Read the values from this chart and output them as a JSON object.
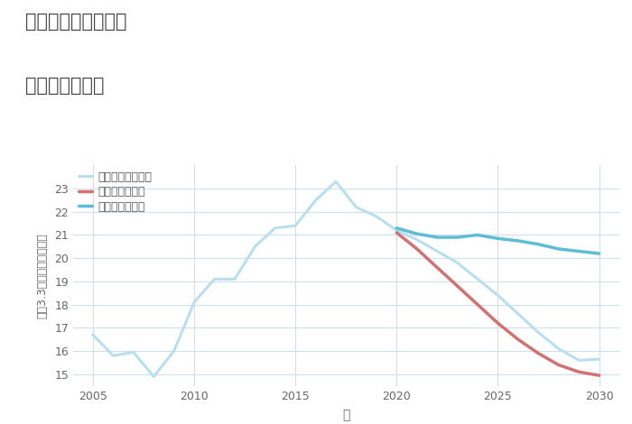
{
  "title_line1": "福岡県古賀市美明の",
  "title_line2": "土地の価格推移",
  "xlabel": "年",
  "ylabel": "坪（3.3㎡）単価（万円）",
  "ylim": [
    14.5,
    24.0
  ],
  "xlim": [
    2004,
    2031
  ],
  "yticks": [
    15,
    16,
    17,
    18,
    19,
    20,
    21,
    22,
    23
  ],
  "xticks": [
    2005,
    2010,
    2015,
    2020,
    2025,
    2030
  ],
  "good_scenario": {
    "label": "グッドシナリオ",
    "color": "#5bbdd6",
    "linewidth": 2.5,
    "x": [
      2020,
      2021,
      2022,
      2023,
      2024,
      2025,
      2026,
      2027,
      2028,
      2029,
      2030
    ],
    "y": [
      21.3,
      21.05,
      20.9,
      20.9,
      21.0,
      20.85,
      20.75,
      20.6,
      20.4,
      20.3,
      20.2
    ]
  },
  "bad_scenario": {
    "label": "バッドシナリオ",
    "color": "#d47070",
    "linewidth": 2.5,
    "x": [
      2020,
      2021,
      2022,
      2023,
      2024,
      2025,
      2026,
      2027,
      2028,
      2029,
      2030
    ],
    "y": [
      21.1,
      20.4,
      19.6,
      18.8,
      18.0,
      17.2,
      16.5,
      15.9,
      15.4,
      15.1,
      14.95
    ]
  },
  "normal_scenario": {
    "label": "ノーマルシナリオ",
    "color": "#b8dff0",
    "linewidth": 2.2,
    "x": [
      2005,
      2006,
      2007,
      2008,
      2009,
      2010,
      2011,
      2012,
      2013,
      2014,
      2015,
      2016,
      2017,
      2018,
      2019,
      2020,
      2021,
      2022,
      2023,
      2024,
      2025,
      2026,
      2027,
      2028,
      2029,
      2030
    ],
    "y": [
      16.7,
      15.8,
      15.95,
      14.9,
      16.0,
      18.1,
      19.1,
      19.1,
      20.5,
      21.3,
      21.4,
      22.5,
      23.3,
      22.2,
      21.8,
      21.2,
      20.8,
      20.3,
      19.8,
      19.1,
      18.4,
      17.6,
      16.8,
      16.1,
      15.6,
      15.65
    ]
  },
  "background_color": "#ffffff",
  "plot_bg_color": "#f5fafd",
  "grid_color": "#cce0ee",
  "title_color": "#444444",
  "tick_color": "#666666",
  "legend_text_color": "#555555"
}
